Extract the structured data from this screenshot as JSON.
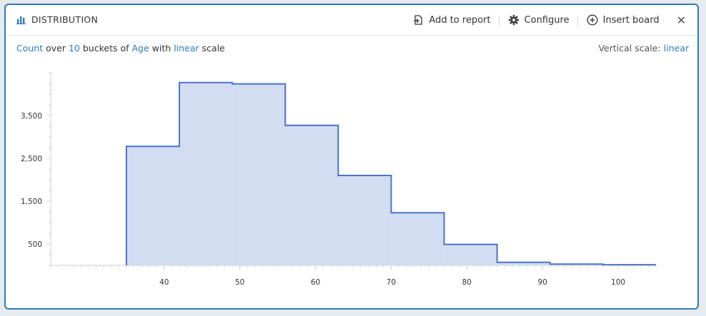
{
  "header": {
    "title": "DISTRIBUTION",
    "actions": {
      "add_to_report": "Add to report",
      "configure": "Configure",
      "insert_board": "Insert board"
    },
    "close_glyph": "✕",
    "icons": [
      "bar-chart-icon",
      "report-icon",
      "gear-icon",
      "plus-circle-icon",
      "close-icon"
    ]
  },
  "subline": {
    "metric": "Count",
    "word_over": "over",
    "buckets": "10",
    "word_buckets_of": "buckets of",
    "field": "Age",
    "word_with": "with",
    "scale": "linear",
    "word_scale": "scale"
  },
  "vertical_scale": {
    "label": "Vertical scale:",
    "value": "linear"
  },
  "colors": {
    "accent": "#2f7bb8",
    "bar_fill": "#d3ddf1",
    "bar_stroke": "#4a73c9"
  },
  "chart_data": {
    "type": "bar",
    "bins": [
      {
        "x0": 35,
        "x1": 42,
        "value": 2780
      },
      {
        "x0": 42,
        "x1": 49,
        "value": 4270
      },
      {
        "x0": 49,
        "x1": 56,
        "value": 4240
      },
      {
        "x0": 56,
        "x1": 63,
        "value": 3270
      },
      {
        "x0": 63,
        "x1": 70,
        "value": 2100
      },
      {
        "x0": 70,
        "x1": 77,
        "value": 1230
      },
      {
        "x0": 77,
        "x1": 84,
        "value": 490
      },
      {
        "x0": 84,
        "x1": 91,
        "value": 70
      },
      {
        "x0": 91,
        "x1": 98,
        "value": 30
      },
      {
        "x0": 98,
        "x1": 105,
        "value": 15
      }
    ],
    "xticks": [
      40,
      50,
      60,
      70,
      80,
      90,
      100
    ],
    "yticks": [
      500,
      1500,
      2500,
      3500
    ],
    "xlim": [
      25,
      105
    ],
    "ylim": [
      0,
      4500
    ],
    "xlabel": "",
    "ylabel": "",
    "grid": false
  }
}
